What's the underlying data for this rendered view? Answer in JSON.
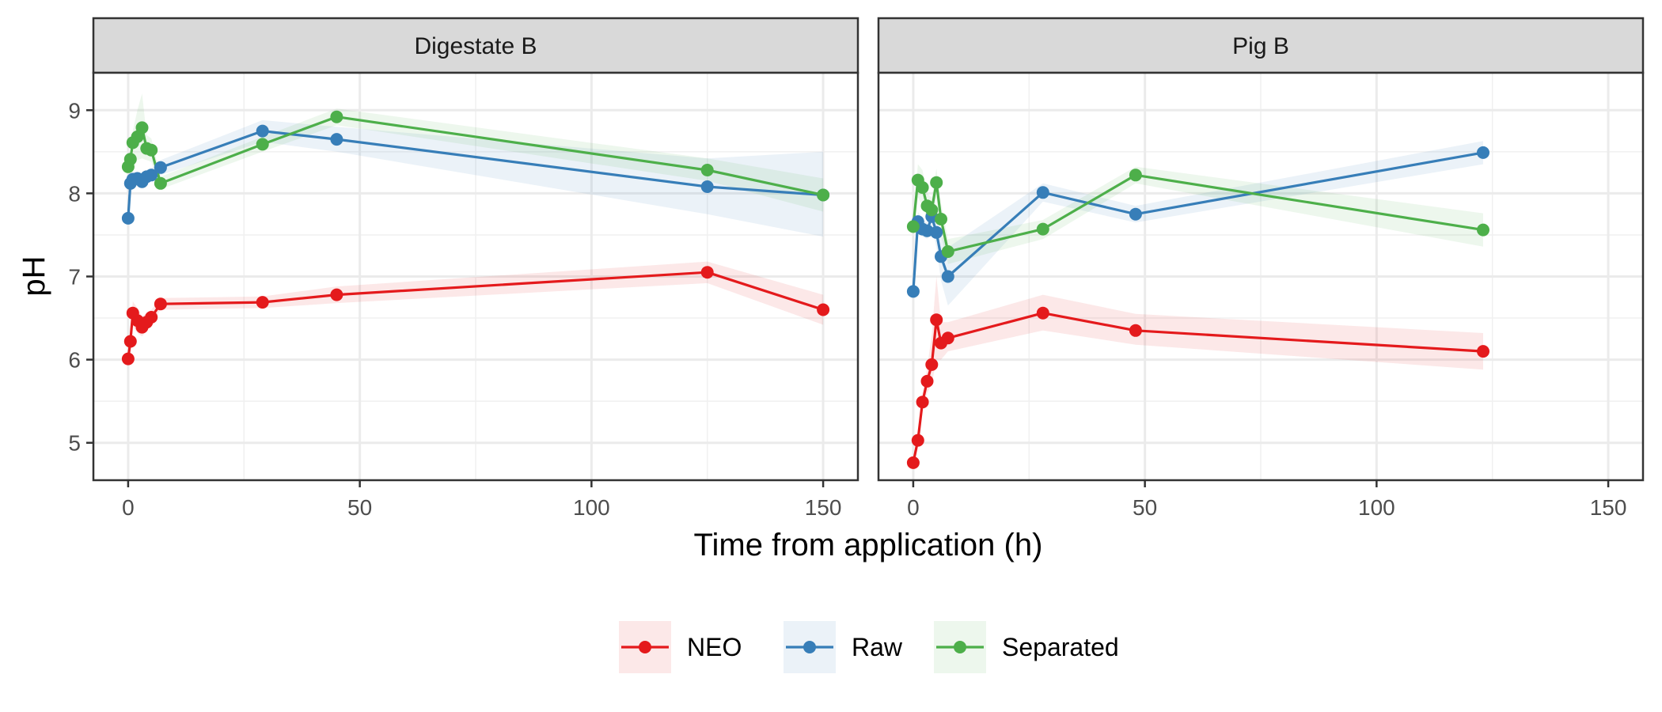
{
  "chart_data": {
    "type": "line",
    "xlabel": "Time from application (h)",
    "ylabel": "pH",
    "xlim": [
      -7.5,
      157.5
    ],
    "ylim": [
      4.55,
      9.45
    ],
    "x_ticks": [
      0,
      50,
      100,
      150
    ],
    "y_ticks": [
      5,
      6,
      7,
      8,
      9
    ],
    "grid": true,
    "legend_position": "bottom",
    "legend_entries": [
      "NEO",
      "Raw",
      "Separated"
    ],
    "colors": {
      "NEO": "#e41a1c",
      "Raw": "#377eb8",
      "Separated": "#4daf4a"
    },
    "panels": [
      {
        "title": "Digestate B",
        "series": [
          {
            "name": "NEO",
            "x": [
              0,
              0.5,
              1,
              2,
              3,
              4,
              5,
              7,
              29,
              45,
              125,
              150
            ],
            "y": [
              6.01,
              6.22,
              6.56,
              6.47,
              6.39,
              6.45,
              6.51,
              6.67,
              6.69,
              6.78,
              7.05,
              6.6
            ],
            "lo": [
              5.95,
              6.1,
              6.4,
              6.32,
              6.28,
              6.35,
              6.42,
              6.6,
              6.62,
              6.68,
              6.92,
              6.42
            ],
            "hi": [
              6.08,
              6.35,
              6.7,
              6.62,
              6.52,
              6.56,
              6.6,
              6.74,
              6.76,
              6.88,
              7.18,
              6.78
            ]
          },
          {
            "name": "Raw",
            "x": [
              0,
              0.5,
              1,
              2,
              3,
              4,
              5,
              7,
              29,
              45,
              125,
              150
            ],
            "y": [
              7.7,
              8.12,
              8.17,
              8.18,
              8.14,
              8.2,
              8.22,
              8.31,
              8.75,
              8.65,
              8.08,
              7.98
            ],
            "lo": [
              7.65,
              8.05,
              8.1,
              8.1,
              8.08,
              8.12,
              8.15,
              8.22,
              8.62,
              8.5,
              7.75,
              7.48
            ],
            "hi": [
              7.76,
              8.2,
              8.25,
              8.26,
              8.22,
              8.28,
              8.3,
              8.4,
              8.88,
              8.8,
              8.42,
              8.5
            ]
          },
          {
            "name": "Separated",
            "x": [
              0,
              0.5,
              1,
              2,
              3,
              4,
              5,
              7,
              29,
              45,
              125,
              150
            ],
            "y": [
              8.32,
              8.41,
              8.61,
              8.68,
              8.79,
              8.54,
              8.52,
              8.12,
              8.59,
              8.92,
              8.28,
              7.98
            ],
            "lo": [
              8.25,
              8.3,
              8.48,
              8.4,
              8.42,
              8.4,
              8.38,
              8.05,
              8.5,
              8.82,
              8.15,
              7.78
            ],
            "hi": [
              8.4,
              8.52,
              8.75,
              9.0,
              9.2,
              8.7,
              8.66,
              8.2,
              8.68,
              9.02,
              8.42,
              8.18
            ]
          }
        ]
      },
      {
        "title": "Pig B",
        "series": [
          {
            "name": "NEO",
            "x": [
              0,
              1,
              2,
              3,
              4,
              5,
              6,
              7.5,
              28,
              48,
              123
            ],
            "y": [
              4.76,
              5.03,
              5.49,
              5.74,
              5.94,
              6.48,
              6.2,
              6.26,
              6.56,
              6.35,
              6.1
            ],
            "lo": [
              4.7,
              4.95,
              5.4,
              5.6,
              5.7,
              6.0,
              6.0,
              6.1,
              6.35,
              6.18,
              5.88
            ],
            "hi": [
              4.82,
              5.12,
              5.6,
              5.9,
              6.3,
              7.0,
              6.45,
              6.45,
              6.78,
              6.55,
              6.32
            ]
          },
          {
            "name": "Raw",
            "x": [
              0,
              1,
              2,
              3,
              4,
              5,
              6,
              7.5,
              28,
              48,
              123
            ],
            "y": [
              6.82,
              7.66,
              7.57,
              7.55,
              7.72,
              7.53,
              7.24,
              7.0,
              8.01,
              7.75,
              8.49
            ],
            "lo": [
              6.75,
              7.55,
              7.48,
              7.45,
              7.6,
              7.35,
              6.95,
              6.65,
              7.9,
              7.65,
              8.35
            ],
            "hi": [
              6.9,
              7.78,
              7.68,
              7.65,
              7.85,
              7.7,
              7.5,
              7.35,
              8.12,
              7.85,
              8.63
            ]
          },
          {
            "name": "Separated",
            "x": [
              0,
              1,
              2,
              3,
              4,
              5,
              6,
              7.5,
              28,
              48,
              123
            ],
            "y": [
              7.6,
              8.16,
              8.07,
              7.85,
              7.8,
              8.13,
              7.69,
              7.3,
              7.57,
              8.22,
              7.56
            ],
            "lo": [
              7.52,
              7.95,
              7.85,
              7.7,
              7.65,
              7.95,
              7.5,
              7.15,
              7.45,
              8.12,
              7.36
            ],
            "hi": [
              7.68,
              8.35,
              8.28,
              8.0,
              7.95,
              8.3,
              7.88,
              7.45,
              7.68,
              8.32,
              7.76
            ]
          }
        ]
      }
    ]
  }
}
